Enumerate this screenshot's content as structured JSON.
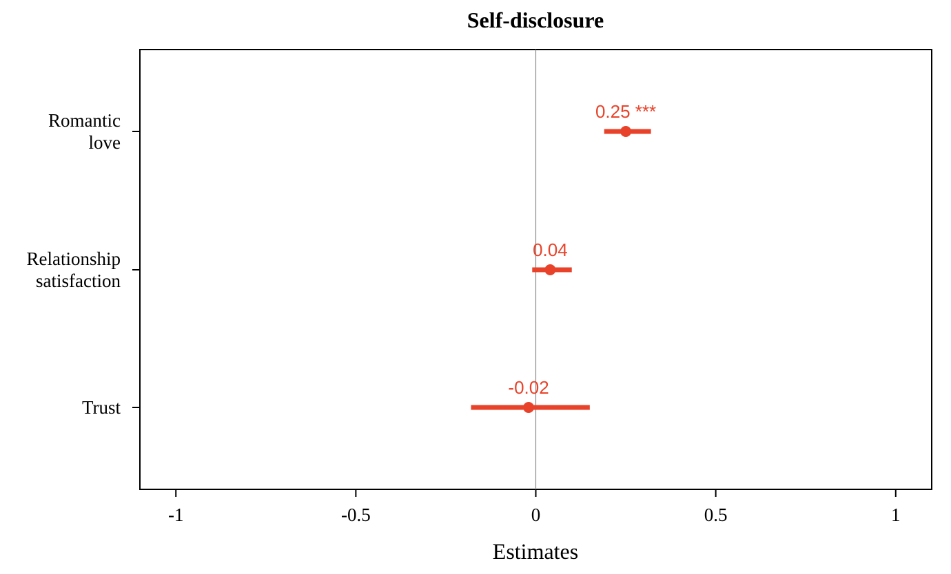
{
  "chart_data": {
    "type": "scatter",
    "title": "Self-disclosure",
    "xlabel": "Estimates",
    "ylabel": "",
    "xlim": [
      -1.1,
      1.1
    ],
    "x_ticks": [
      -1,
      -0.5,
      0,
      0.5,
      1
    ],
    "x_tick_labels": [
      "-1",
      "-0.5",
      "0",
      "0.5",
      "1"
    ],
    "reference_line_x": 0,
    "grid": false,
    "color": "#e8432a",
    "categories": [
      [
        "Romantic",
        "love"
      ],
      [
        "Relationship",
        "satisfaction"
      ],
      [
        "Trust"
      ]
    ],
    "points": [
      {
        "estimate": 0.25,
        "ci_low": 0.19,
        "ci_high": 0.32,
        "label": "0.25 ***"
      },
      {
        "estimate": 0.04,
        "ci_low": -0.01,
        "ci_high": 0.1,
        "label": "0.04"
      },
      {
        "estimate": -0.02,
        "ci_low": -0.18,
        "ci_high": 0.15,
        "label": "-0.02"
      }
    ]
  }
}
